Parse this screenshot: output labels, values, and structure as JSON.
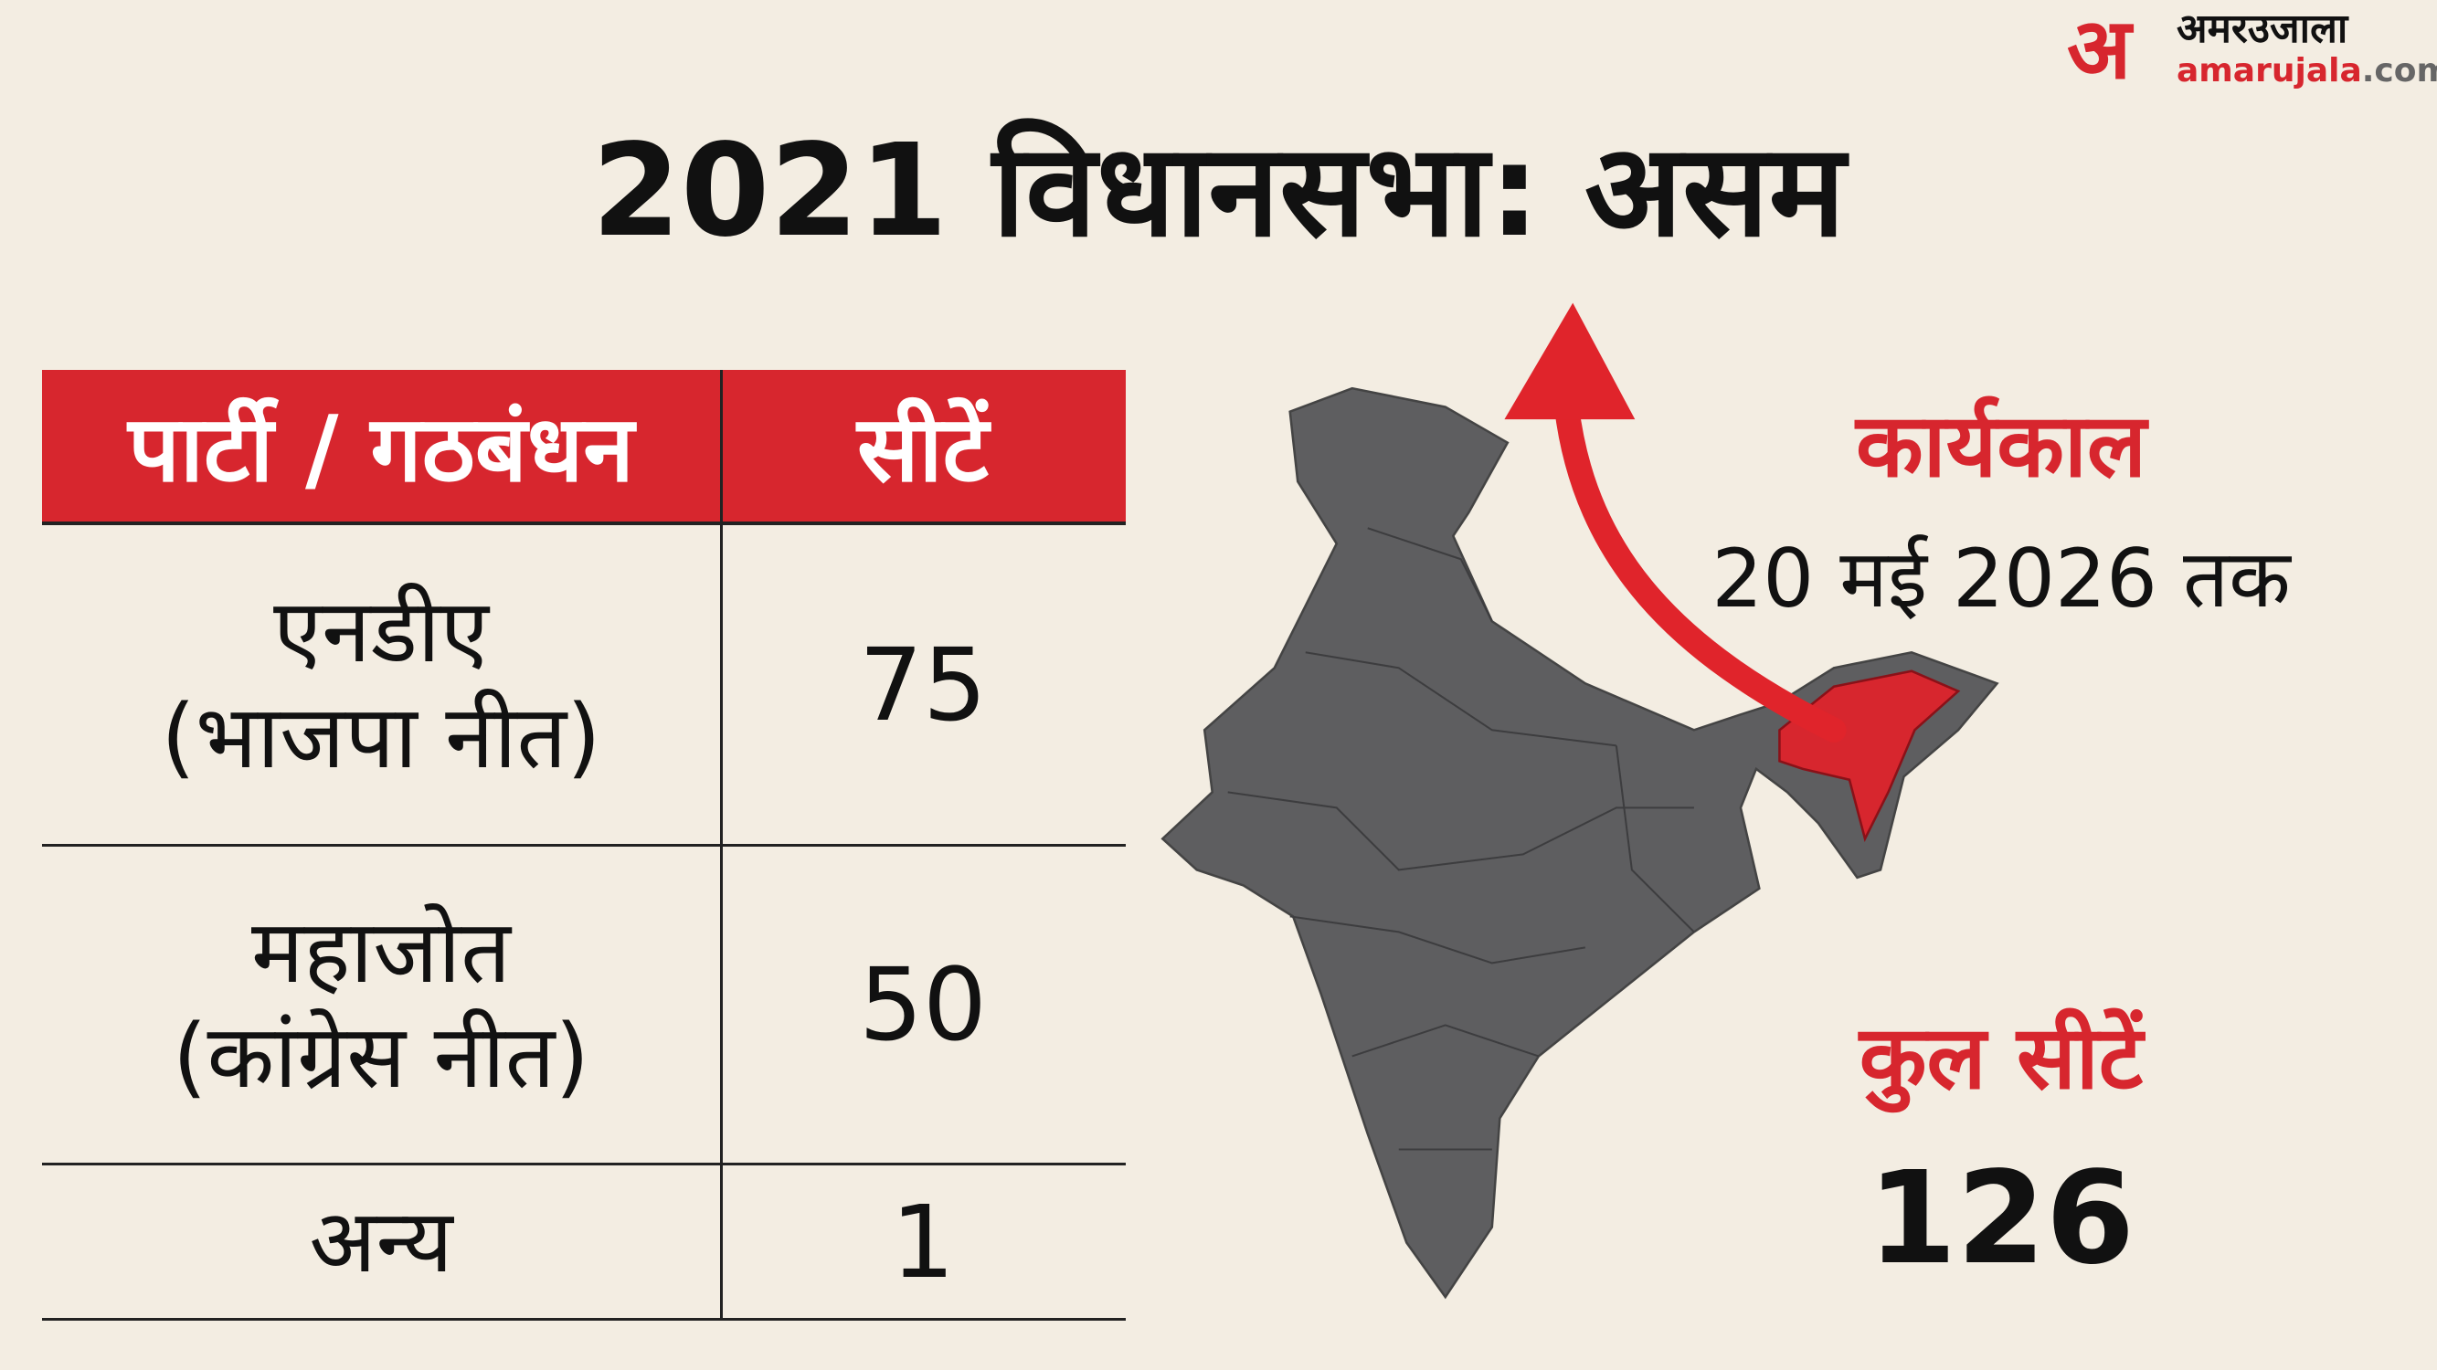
{
  "title": "2021 विधानसभा: असम",
  "logo": {
    "mark": "अ",
    "hindi": "अमरउजाला",
    "site": "amarujala",
    "tld": ".com"
  },
  "table": {
    "headers": [
      "पार्टी / गठबंधन",
      "सीटें"
    ],
    "rows": [
      {
        "party": "एनडीए",
        "sub": "(भाजपा नीत)",
        "seats": "75"
      },
      {
        "party": "महाजोत",
        "sub": "(कांग्रेस नीत)",
        "seats": "50"
      },
      {
        "party": "अन्य",
        "sub": "",
        "seats": "1"
      }
    ]
  },
  "tenure": {
    "label": "कार्यकाल",
    "value": "20 मई 2026 तक"
  },
  "total": {
    "label": "कुल सीटें",
    "value": "126"
  },
  "colors": {
    "accent": "#d7262e",
    "map": "#5e5e60",
    "background": "#f3ede2"
  }
}
